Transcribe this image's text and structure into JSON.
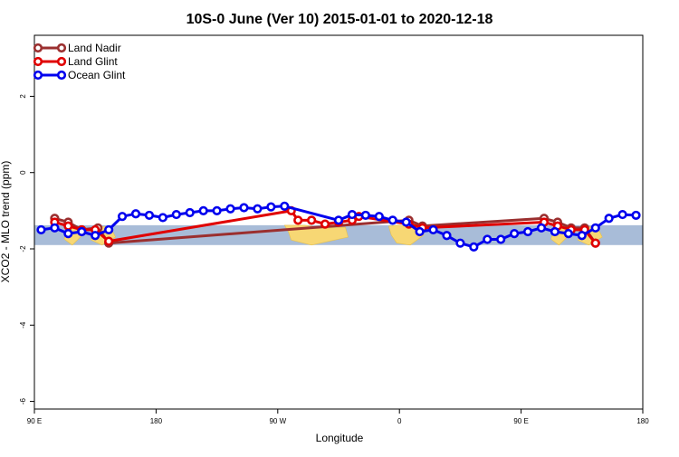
{
  "chart_data": {
    "type": "line",
    "title": "10S-0 June (Ver 10)   2015-01-01 to 2020-12-18",
    "xlabel": "Longitude",
    "ylabel": "XCO2 - MLO trend (ppm)",
    "xlim": [
      0,
      450
    ],
    "ylim": [
      -6.2,
      3.6
    ],
    "x_ticks": [
      {
        "value": 0,
        "label": "90 E"
      },
      {
        "value": 90,
        "label": "180"
      },
      {
        "value": 180,
        "label": "90 W"
      },
      {
        "value": 270,
        "label": "0"
      },
      {
        "value": 360,
        "label": "90 E"
      },
      {
        "value": 450,
        "label": "180"
      }
    ],
    "y_ticks": [
      {
        "value": 2,
        "label": "2"
      },
      {
        "value": 0,
        "label": "0"
      },
      {
        "value": -2,
        "label": "-2"
      },
      {
        "value": -4,
        "label": "-4"
      },
      {
        "value": -6,
        "label": "-6"
      }
    ],
    "legend_position": "top-left",
    "grid": false,
    "map_band": {
      "ymin": -1.9,
      "ymax": -1.38,
      "ocean_color": "#a8bcd8",
      "land_color": "#f7d774"
    },
    "series": [
      {
        "name": "Land Nadir",
        "color": "#9b2f2f",
        "x": [
          15,
          25,
          35,
          47,
          55,
          277,
          287,
          377,
          387,
          397,
          407,
          415
        ],
        "y": [
          -1.2,
          -1.3,
          -1.5,
          -1.45,
          -1.85,
          -1.25,
          -1.4,
          -1.2,
          -1.3,
          -1.45,
          -1.45,
          -1.85
        ]
      },
      {
        "name": "Land Glint",
        "color": "#e00000",
        "x": [
          15,
          25,
          35,
          45,
          55,
          190,
          195,
          205,
          215,
          225,
          235,
          240,
          277,
          287,
          377,
          387,
          397,
          407,
          415
        ],
        "y": [
          -1.3,
          -1.4,
          -1.5,
          -1.5,
          -1.8,
          -1.0,
          -1.25,
          -1.25,
          -1.35,
          -1.3,
          -1.25,
          -1.15,
          -1.35,
          -1.45,
          -1.3,
          -1.4,
          -1.5,
          -1.5,
          -1.85
        ]
      },
      {
        "name": "Ocean Glint",
        "color": "#0000ee",
        "x": [
          5,
          15,
          25,
          35,
          45,
          55,
          65,
          75,
          85,
          95,
          105,
          115,
          125,
          135,
          145,
          155,
          165,
          175,
          185,
          225,
          235,
          245,
          255,
          265,
          275,
          285,
          295,
          305,
          315,
          325,
          335,
          345,
          355,
          365,
          375,
          385,
          395,
          405,
          415,
          425,
          435,
          445
        ],
        "y": [
          -1.5,
          -1.45,
          -1.6,
          -1.55,
          -1.65,
          -1.5,
          -1.15,
          -1.08,
          -1.12,
          -1.18,
          -1.1,
          -1.05,
          -1.0,
          -1.0,
          -0.95,
          -0.92,
          -0.95,
          -0.9,
          -0.88,
          -1.25,
          -1.1,
          -1.12,
          -1.15,
          -1.25,
          -1.3,
          -1.55,
          -1.5,
          -1.65,
          -1.85,
          -1.95,
          -1.75,
          -1.75,
          -1.6,
          -1.55,
          -1.45,
          -1.55,
          -1.6,
          -1.65,
          -1.45,
          -1.2,
          -1.1,
          -1.12
        ]
      }
    ]
  }
}
